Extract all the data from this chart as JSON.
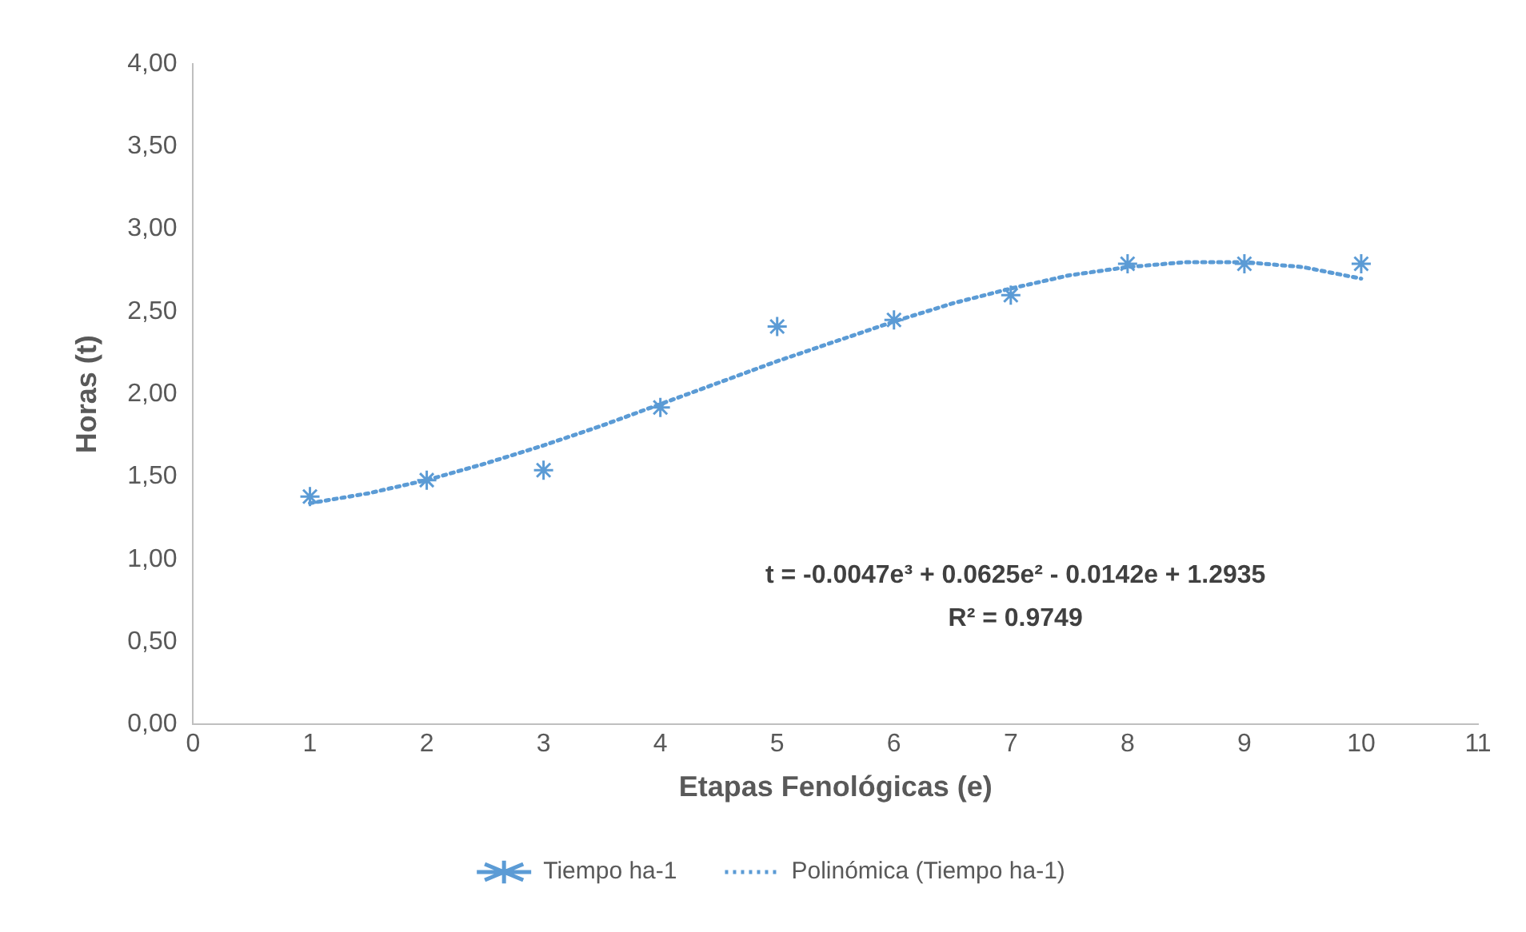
{
  "chart_data": {
    "type": "scatter",
    "xlabel": "Etapas Fenológicas (e)",
    "ylabel": "Horas (t)",
    "xlim": [
      0,
      11
    ],
    "xticks": [
      0,
      1,
      2,
      3,
      4,
      5,
      6,
      7,
      8,
      9,
      10,
      11
    ],
    "ylim": [
      0,
      4
    ],
    "yticks": [
      {
        "value": 0,
        "label": "0,00"
      },
      {
        "value": 0.5,
        "label": "0,50"
      },
      {
        "value": 1,
        "label": "1,00"
      },
      {
        "value": 1.5,
        "label": "1,50"
      },
      {
        "value": 2,
        "label": "2,00"
      },
      {
        "value": 2.5,
        "label": "2,50"
      },
      {
        "value": 3,
        "label": "3,00"
      },
      {
        "value": 3.5,
        "label": "3,50"
      },
      {
        "value": 4,
        "label": "4,00"
      }
    ],
    "grid": false,
    "legend": "bottom",
    "series": [
      {
        "name": "Tiempo ha-1",
        "type": "scatter",
        "color": "#5b9bd5",
        "marker": "cross",
        "x": [
          1,
          2,
          3,
          4,
          5,
          6,
          7,
          8,
          9,
          10
        ],
        "values": [
          1.38,
          1.48,
          1.54,
          1.92,
          2.41,
          2.45,
          2.6,
          2.79,
          2.79,
          2.79
        ]
      },
      {
        "name": "Polinómica (Tiempo ha-1)",
        "type": "line",
        "color": "#5b9bd5",
        "marker": "none",
        "line_style": "dotted",
        "x": [
          1,
          1.5,
          2,
          2.5,
          3,
          3.5,
          4,
          4.5,
          5,
          5.5,
          6,
          6.5,
          7,
          7.5,
          8,
          8.5,
          9,
          9.5,
          10
        ],
        "values": [
          1.34,
          1.4,
          1.48,
          1.58,
          1.69,
          1.81,
          1.94,
          2.07,
          2.2,
          2.32,
          2.44,
          2.55,
          2.64,
          2.72,
          2.77,
          2.8,
          2.8,
          2.77,
          2.7
        ]
      }
    ],
    "annotations": [
      "t = -0.0047e³ + 0.0625e² - 0.0142e + 1.2935",
      "R² = 0.9749"
    ]
  }
}
